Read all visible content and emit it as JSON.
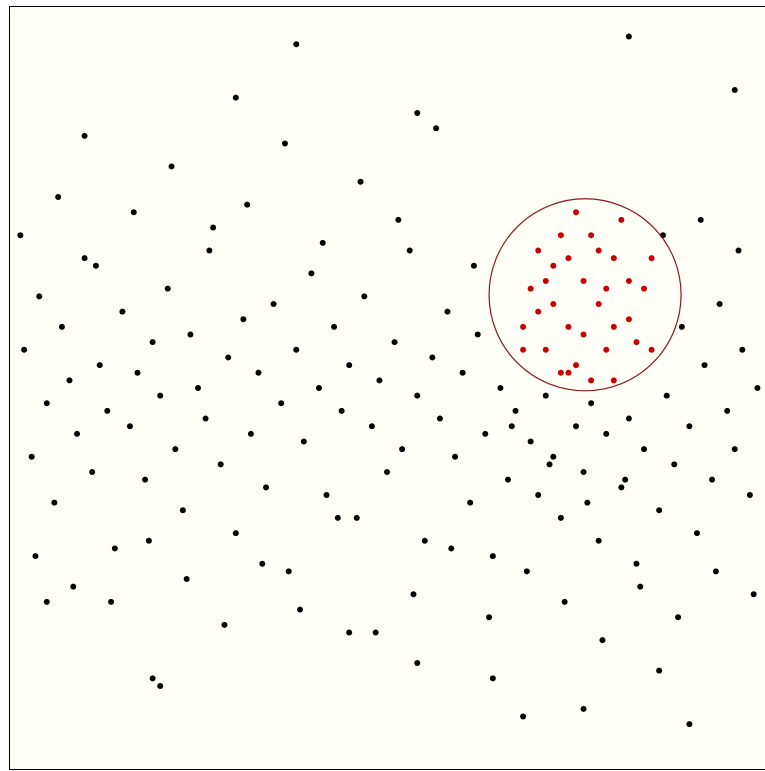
{
  "chart_data": {
    "type": "scatter",
    "x": [
      2,
      3,
      4,
      5,
      6,
      7,
      8,
      9,
      10,
      11,
      12,
      13,
      14,
      15,
      16,
      17,
      18,
      19,
      20,
      21,
      22,
      23,
      24,
      25,
      26,
      27,
      28,
      29,
      30,
      31,
      32,
      33,
      34,
      35,
      36,
      37,
      38,
      39,
      40,
      41,
      42,
      43,
      44,
      45,
      46,
      47,
      48,
      49,
      50,
      51,
      52,
      53,
      54,
      55,
      56,
      57,
      58,
      59,
      60,
      61,
      62,
      63,
      64,
      65,
      66,
      67,
      68,
      69,
      70,
      71,
      72,
      73,
      74,
      75,
      76,
      77,
      78,
      79,
      80,
      81,
      82,
      83,
      84,
      85,
      86,
      87,
      88,
      89,
      90,
      91,
      92,
      93,
      94,
      95,
      96,
      97,
      98,
      99,
      1.5,
      3.5,
      6.5,
      8.5,
      11.5,
      13.5,
      16.5,
      18.5,
      21.5,
      23.5,
      26.5,
      28.5,
      31.5,
      33.5,
      36.5,
      38.5,
      41.5,
      43.5,
      46.5,
      48.5,
      51.5,
      53.5,
      56.5,
      58.5,
      61.5,
      63.5,
      66.5,
      68.5,
      71.5,
      73.5,
      76.5,
      78.5,
      81.5,
      83.5,
      86.5,
      88.5,
      91.5,
      93.5,
      96.5,
      98.5,
      38,
      82,
      30,
      54,
      10,
      96,
      20,
      86,
      64,
      54,
      90,
      68,
      19,
      76,
      5,
      45,
      70,
      72,
      74,
      76,
      78,
      80,
      82,
      73,
      77,
      79,
      71,
      75,
      84,
      81,
      69,
      76,
      72,
      80,
      74,
      78,
      83,
      70,
      77,
      85,
      68,
      75,
      73,
      82,
      79,
      71
    ],
    "values": [
      55,
      41,
      62,
      48,
      35,
      58,
      51,
      44,
      67,
      39,
      53,
      47,
      29,
      60,
      45,
      52,
      38,
      56,
      49,
      63,
      42,
      34,
      57,
      50,
      46,
      71,
      40,
      54,
      31,
      59,
      44,
      52,
      37,
      61,
      48,
      26,
      55,
      43,
      65,
      50,
      36,
      58,
      47,
      53,
      33,
      62,
      45,
      51,
      39,
      56,
      42,
      68,
      49,
      30,
      54,
      46,
      60,
      41,
      52,
      35,
      57,
      44,
      28,
      50,
      38,
      47,
      55,
      43,
      36,
      49,
      41,
      33,
      52,
      45,
      39,
      48,
      30,
      44,
      51,
      37,
      46,
      27,
      42,
      55,
      34,
      49,
      40,
      58,
      45,
      31,
      53,
      38,
      61,
      47,
      42,
      55,
      36,
      50,
      70,
      28,
      75,
      24,
      66,
      22,
      73,
      30,
      79,
      25,
      68,
      19,
      74,
      27,
      82,
      21,
      69,
      33,
      77,
      18,
      72,
      23,
      84,
      29,
      66,
      20,
      45,
      26,
      40,
      22,
      35,
      17,
      38,
      24,
      70,
      20,
      72,
      26,
      68,
      23,
      95,
      96,
      88,
      86,
      83,
      89,
      11,
      13,
      12,
      14,
      6,
      7,
      12,
      8,
      22,
      18,
      60,
      66,
      58,
      64,
      61,
      67,
      59,
      70,
      70,
      55,
      55,
      53,
      63,
      72,
      63,
      57,
      61,
      58,
      67,
      68,
      56,
      68,
      51,
      67,
      58,
      73,
      52,
      64,
      63,
      64
    ],
    "xlim": [
      0,
      100
    ],
    "ylim": [
      0,
      100
    ],
    "color": "#000000",
    "selected_color": "#cc0000",
    "brush": {
      "cx": 76.2,
      "cy": 62.2,
      "r": 12.7,
      "color": "#8b1a1a"
    }
  }
}
